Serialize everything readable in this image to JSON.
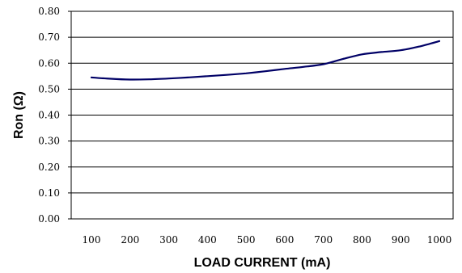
{
  "chart_data": {
    "type": "line",
    "title": "",
    "xlabel": "LOAD CURRENT (mA)",
    "ylabel": "Ron (Ω)",
    "ylim": [
      0.0,
      0.8
    ],
    "xlim": [
      100,
      1000
    ],
    "grid": true,
    "x_ticks": [
      "100",
      "200",
      "300",
      "400",
      "500",
      "600",
      "700",
      "800",
      "900",
      "1000"
    ],
    "y_ticks": [
      "0.00",
      "0.10",
      "0.20",
      "0.30",
      "0.40",
      "0.50",
      "0.60",
      "0.70",
      "0.80"
    ],
    "series": [
      {
        "color": "#000066",
        "x": [
          100,
          150,
          200,
          250,
          300,
          350,
          400,
          450,
          500,
          550,
          600,
          650,
          700,
          750,
          800,
          850,
          900,
          950,
          1000
        ],
        "y": [
          0.545,
          0.54,
          0.537,
          0.538,
          0.541,
          0.545,
          0.55,
          0.555,
          0.561,
          0.569,
          0.578,
          0.586,
          0.596,
          0.616,
          0.634,
          0.643,
          0.65,
          0.665,
          0.685
        ]
      }
    ]
  }
}
